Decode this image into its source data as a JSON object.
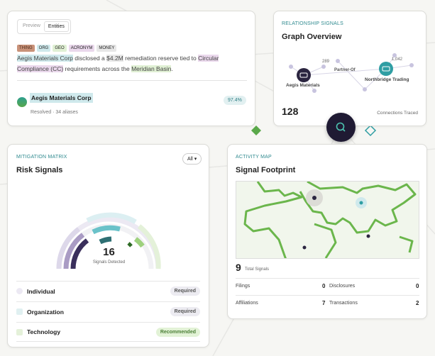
{
  "entity_card": {
    "tabs": [
      "Preview",
      "Entities"
    ],
    "tags": [
      "THING",
      "ORG",
      "GEO",
      "ACRONYM",
      "MONEY"
    ],
    "sentence": [
      "Aegis Materials Corp",
      " disclosed a ",
      "$4.2M",
      " remediation reserve tied to ",
      "Circular Compliance (CC)",
      " requirements across the ",
      "Meridian Basin",
      "."
    ],
    "entity": {
      "name": "Aegis Materials Corp",
      "meta": "Resolved · 34 aliases",
      "score": "97.4%"
    }
  },
  "graph_card": {
    "eyebrow": "RELATIONSHIP SIGNALS",
    "title": "Graph Overview",
    "nodes": [
      "Aegis Materials",
      "Northbridge Trading"
    ],
    "edge_label": "Partner-Of",
    "edge_values": [
      289,
      "1,042"
    ],
    "count": 128,
    "count_label": "Connections Traced"
  },
  "risk_card": {
    "eyebrow": "MITIGATION MATRIX",
    "title": "Risk Signals",
    "filter": "All",
    "count": 16,
    "count_label": "Signals Detected",
    "rows": [
      {
        "label": "Individual",
        "status": "Required"
      },
      {
        "label": "Organization",
        "status": "Required"
      },
      {
        "label": "Technology",
        "status": "Recommended"
      }
    ]
  },
  "map_card": {
    "eyebrow": "ACTIVITY MAP",
    "title": "Signal Footprint",
    "total": 9,
    "total_label": "Total Signals",
    "stats": [
      {
        "label": "Filings",
        "value": 0
      },
      {
        "label": "Disclosures",
        "value": 0
      },
      {
        "label": "Affiliations",
        "value": 7
      },
      {
        "label": "Transactions",
        "value": 2
      }
    ]
  }
}
